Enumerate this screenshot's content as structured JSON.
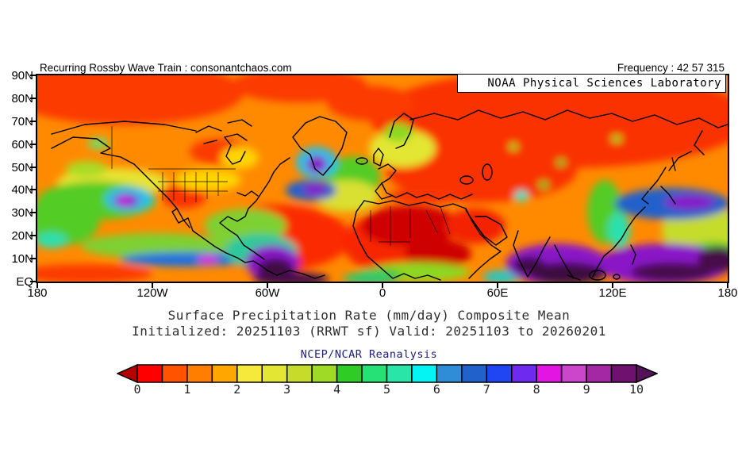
{
  "header": {
    "left_caption": "Recurring Rossby Wave Train : consonantchaos.com",
    "frequency_label": "Frequency : 42 57 315",
    "noaa_banner": "NOAA Physical Sciences Laboratory"
  },
  "axes": {
    "lat_ticks": [
      "90N",
      "80N",
      "70N",
      "60N",
      "50N",
      "40N",
      "30N",
      "20N",
      "10N",
      "EQ"
    ],
    "lon_ticks": [
      "180",
      "120W",
      "60W",
      "0",
      "60E",
      "120E",
      "180"
    ]
  },
  "titles": {
    "main": "Surface Precipitation Rate (mm/day) Composite Mean",
    "sub": "Initialized: 20251103 (RRWT sf) Valid: 20251103 to 20260201",
    "dataset": "NCEP/NCAR Reanalysis"
  },
  "colorbar": {
    "tick_labels": [
      "0",
      "1",
      "2",
      "3",
      "4",
      "5",
      "6",
      "7",
      "8",
      "9",
      "10"
    ],
    "units": "mm/day",
    "under_arrow_color": "#b30000",
    "over_arrow_color": "#541257",
    "cell_colors": [
      "#fe0000",
      "#ff5300",
      "#ff7e00",
      "#ffa600",
      "#f7e93c",
      "#e3e632",
      "#c6dc2a",
      "#9fdb24",
      "#2ecc24",
      "#26e276",
      "#2ae5a8",
      "#04f4f4",
      "#2f8dd8",
      "#2161cb",
      "#1f46f2",
      "#6e2bef",
      "#e215e2",
      "#cc46cc",
      "#a428a4",
      "#6f126f"
    ]
  },
  "chart_data": {
    "type": "heatmap",
    "title": "Surface Precipitation Rate (mm/day) Composite Mean",
    "subtitle": "Initialized: 20251103 (RRWT sf) Valid: 20251103 to 20260201",
    "dataset": "NCEP/NCAR Reanalysis",
    "variable": "Surface Precipitation Rate",
    "units": "mm/day",
    "x_axis": {
      "label": "longitude",
      "ticks": [
        "180",
        "120W",
        "60W",
        "0",
        "60E",
        "120E",
        "180"
      ],
      "range_deg": [
        -180,
        180
      ]
    },
    "y_axis": {
      "label": "latitude",
      "ticks": [
        "90N",
        "80N",
        "70N",
        "60N",
        "50N",
        "40N",
        "30N",
        "20N",
        "10N",
        "EQ"
      ],
      "range_deg": [
        0,
        90
      ]
    },
    "color_scale": {
      "min": 0,
      "max": 10,
      "step": 0.5,
      "n_cells": 20,
      "under_arrow": true,
      "over_arrow": true
    },
    "notable_features": [
      {
        "region": "Arctic, Siberia and northern Eurasia",
        "approx_value_mm_day": "0-1"
      },
      {
        "region": "Sahara / North Africa and Arabia",
        "approx_value_mm_day": "0-0.5"
      },
      {
        "region": "Subtropical eastern Pacific high (~20N 120W)",
        "approx_value_mm_day": "0-1"
      },
      {
        "region": "Subtropical eastern Atlantic off West Africa",
        "approx_value_mm_day": "0-1"
      },
      {
        "region": "Midlatitude North Pacific storm track (40-50N)",
        "approx_value_mm_day": "3-5"
      },
      {
        "region": "Gulf of Alaska coast",
        "approx_value_mm_day": "8-10"
      },
      {
        "region": "South of Greenland",
        "approx_value_mm_day": "7-9"
      },
      {
        "region": "Northwest Atlantic (~40N 65W)",
        "approx_value_mm_day": "7-8"
      },
      {
        "region": "Panama / northwest South America ITCZ",
        "approx_value_mm_day": ">10"
      },
      {
        "region": "Eastern Pacific ITCZ band (~8N)",
        "approx_value_mm_day": "6-8"
      },
      {
        "region": "Bay of Bengal / Maritime Continent",
        "approx_value_mm_day": ">10"
      },
      {
        "region": "Western tropical Pacific",
        "approx_value_mm_day": "9->10"
      },
      {
        "region": "Northwest Pacific (~35N 160E)",
        "approx_value_mm_day": "7-8"
      }
    ],
    "projection": "cylindrical lat-lon, 0-90N shown"
  },
  "colors": {
    "map_base": "#ff8a00",
    "ncep_label": "#1d1d7c",
    "frame": "#000000"
  }
}
